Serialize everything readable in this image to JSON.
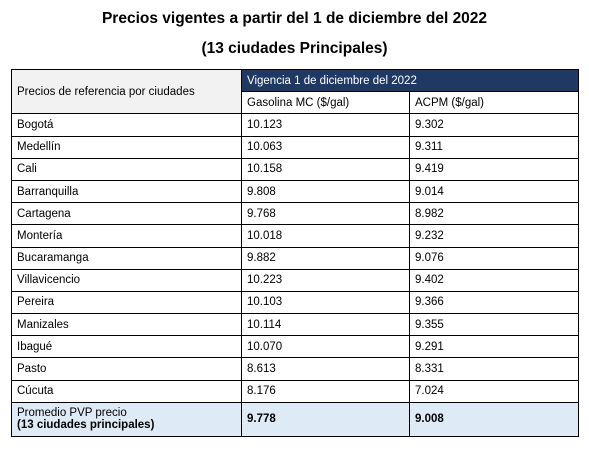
{
  "title_line1": "Precios vigentes a partir del 1 de diciembre del 2022",
  "title_line2": "(13 ciudades Principales)",
  "table": {
    "corner_label": "Precios de referencia por ciudades",
    "vigencia_label": "Vigencia 1 de diciembre del 2022",
    "col_gasolina": "Gasolina MC ($/gal)",
    "col_acpm": "ACPM ($/gal)",
    "rows": [
      {
        "city": "Bogotá",
        "gasolina": "10.123",
        "acpm": "9.302"
      },
      {
        "city": "Medellín",
        "gasolina": "10.063",
        "acpm": "9.311"
      },
      {
        "city": "Cali",
        "gasolina": "10.158",
        "acpm": "9.419"
      },
      {
        "city": "Barranquilla",
        "gasolina": "9.808",
        "acpm": "9.014"
      },
      {
        "city": "Cartagena",
        "gasolina": "9.768",
        "acpm": "8.982"
      },
      {
        "city": "Montería",
        "gasolina": "10.018",
        "acpm": "9.232"
      },
      {
        "city": "Bucaramanga",
        "gasolina": "9.882",
        "acpm": "9.076"
      },
      {
        "city": "Villavicencio",
        "gasolina": "10.223",
        "acpm": "9.402"
      },
      {
        "city": "Pereira",
        "gasolina": "10.103",
        "acpm": "9.366"
      },
      {
        "city": "Manizales",
        "gasolina": "10.114",
        "acpm": "9.355"
      },
      {
        "city": "Ibagué",
        "gasolina": "10.070",
        "acpm": "9.291"
      },
      {
        "city": "Pasto",
        "gasolina": "8.613",
        "acpm": "8.331"
      },
      {
        "city": "Cúcuta",
        "gasolina": "8.176",
        "acpm": "7.024"
      }
    ],
    "footer": {
      "label_line1": "Promedio PVP precio",
      "label_line2": "(13 ciudades principales)",
      "gasolina": "9.778",
      "acpm": "9.008"
    }
  },
  "colors": {
    "header_bg": "#1f3864",
    "footer_bg": "#deeaf6",
    "corner_bg": "#f2f2f2"
  }
}
